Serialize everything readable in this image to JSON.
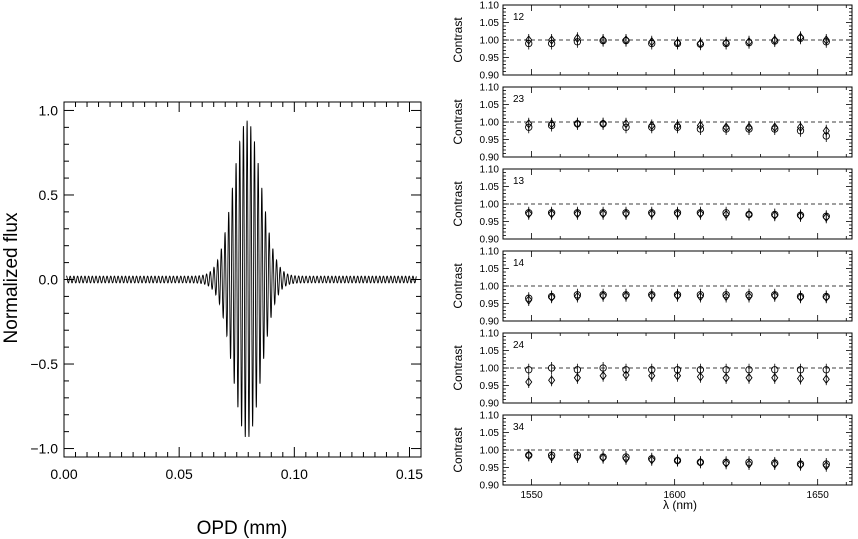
{
  "chart_data": [
    {
      "type": "line",
      "xlabel": "OPD (mm)",
      "ylabel": "Normalized flux",
      "xlim": [
        0.0,
        0.155
      ],
      "ylim": [
        -1.05,
        1.05
      ],
      "x_ticks": [
        "0.00",
        "0.05",
        "0.10",
        "0.15"
      ],
      "y_ticks": [
        "−1.0",
        "−0.5",
        "0.0",
        "0.5",
        "1.0"
      ],
      "grid": false,
      "series": [
        {
          "fringe_center_opd": 0.0795,
          "fringe_period_opd": 0.0016,
          "envelope_width_opd": 0.0085,
          "peak_amplitude": 0.92,
          "minimum_flux": -0.97,
          "baseline_ripple_amplitude": 0.02
        }
      ]
    },
    {
      "type": "scatter",
      "xlabel": "λ (nm)",
      "ylabel": "Contrast",
      "xlim": [
        1540,
        1662
      ],
      "ylim": [
        0.9,
        1.1
      ],
      "x_ticks": [
        "1550",
        "1600",
        "1650"
      ],
      "y_ticks": [
        "0.90",
        "0.95",
        "1.00",
        "1.05",
        "1.10"
      ],
      "reference_line": 1.0,
      "wavelengths": [
        1549,
        1557,
        1566,
        1575,
        1583,
        1592,
        1601,
        1609,
        1618,
        1626,
        1635,
        1644,
        1653
      ],
      "panels": [
        {
          "label": "12",
          "series_circle": [
            0.99,
            0.99,
            0.995,
            0.998,
            0.998,
            0.99,
            0.99,
            0.988,
            0.99,
            0.992,
            0.997,
            1.005,
            0.995
          ],
          "series_diamond": [
            1.0,
            1.0,
            1.005,
            1.0,
            1.0,
            0.995,
            0.992,
            0.99,
            0.992,
            0.995,
            1.0,
            1.008,
            1.0
          ]
        },
        {
          "label": "23",
          "series_circle": [
            0.985,
            0.99,
            0.995,
            0.995,
            0.985,
            0.985,
            0.985,
            0.98,
            0.98,
            0.98,
            0.98,
            0.975,
            0.96
          ],
          "series_diamond": [
            0.995,
            0.995,
            0.995,
            0.995,
            0.995,
            0.99,
            0.99,
            0.99,
            0.985,
            0.985,
            0.985,
            0.985,
            0.975
          ]
        },
        {
          "label": "13",
          "series_circle": [
            0.975,
            0.975,
            0.975,
            0.975,
            0.975,
            0.975,
            0.975,
            0.975,
            0.975,
            0.97,
            0.97,
            0.968,
            0.965
          ],
          "series_diamond": [
            0.972,
            0.972,
            0.972,
            0.972,
            0.972,
            0.972,
            0.972,
            0.972,
            0.97,
            0.97,
            0.968,
            0.966,
            0.962
          ]
        },
        {
          "label": "14",
          "series_circle": [
            0.965,
            0.97,
            0.975,
            0.975,
            0.975,
            0.975,
            0.975,
            0.975,
            0.975,
            0.975,
            0.975,
            0.97,
            0.97
          ],
          "series_diamond": [
            0.96,
            0.968,
            0.97,
            0.972,
            0.972,
            0.972,
            0.972,
            0.97,
            0.97,
            0.97,
            0.972,
            0.968,
            0.968
          ]
        },
        {
          "label": "24",
          "series_circle": [
            0.995,
            1.0,
            0.995,
            1.0,
            0.995,
            0.995,
            0.995,
            0.995,
            0.995,
            0.995,
            0.995,
            0.995,
            0.995
          ],
          "series_diamond": [
            0.96,
            0.965,
            0.972,
            0.978,
            0.98,
            0.978,
            0.978,
            0.975,
            0.972,
            0.972,
            0.972,
            0.97,
            0.968
          ]
        },
        {
          "label": "34",
          "series_circle": [
            0.985,
            0.985,
            0.985,
            0.98,
            0.98,
            0.975,
            0.97,
            0.965,
            0.965,
            0.965,
            0.963,
            0.96,
            0.96
          ],
          "series_diamond": [
            0.985,
            0.98,
            0.98,
            0.978,
            0.975,
            0.972,
            0.97,
            0.965,
            0.962,
            0.96,
            0.96,
            0.958,
            0.955
          ]
        }
      ]
    }
  ]
}
